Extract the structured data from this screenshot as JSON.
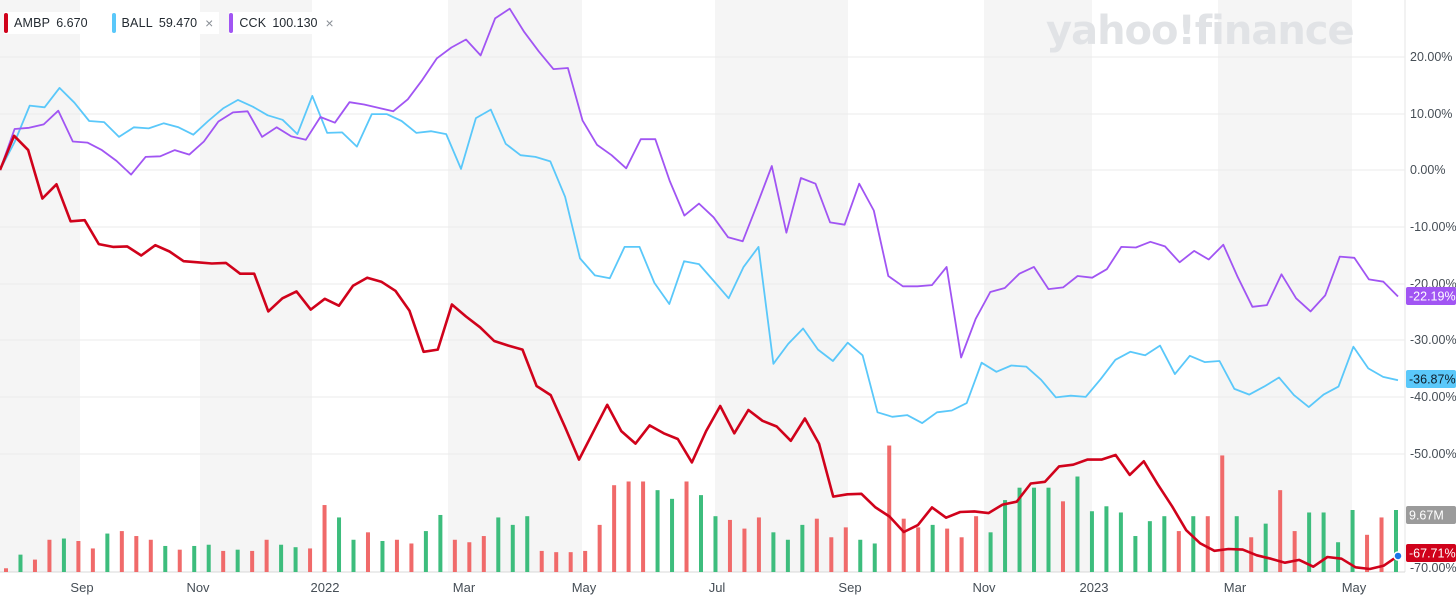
{
  "brand": {
    "logo_text": "yahoo!finance"
  },
  "legend": [
    {
      "symbol": "AMBP",
      "value": "6.670",
      "color": "#d0021b",
      "removable": false
    },
    {
      "symbol": "BALL",
      "value": "59.470",
      "color": "#5ac8fa",
      "removable": true
    },
    {
      "symbol": "CCK",
      "value": "100.130",
      "color": "#a155f3",
      "removable": true
    }
  ],
  "legend_close_glyph": "×",
  "chart_data": {
    "type": "line",
    "x_ticks": [
      "Sep",
      "Nov",
      "2022",
      "Mar",
      "May",
      "Jul",
      "Sep",
      "Nov",
      "2023",
      "Mar",
      "May"
    ],
    "y_ticks": [
      "20.00%",
      "10.00%",
      "0.00%",
      "-10.00%",
      "-20.00%",
      "-30.00%",
      "-40.00%",
      "-50.00%",
      "-70.00%"
    ],
    "ylim": [
      -70,
      30
    ],
    "series": [
      {
        "name": "AMBP",
        "color": "#d0021b",
        "last_label": "-67.71%",
        "values": [
          0,
          6,
          3.5,
          -5,
          -2.5,
          -9,
          -8.8,
          -13,
          -13.5,
          -13.4,
          -15,
          -13.2,
          -14.3,
          -16,
          -16.2,
          -16.4,
          -16.3,
          -18.2,
          -18.2,
          -24.8,
          -22.5,
          -21.3,
          -24.5,
          -22.6,
          -23.8,
          -20.3,
          -18.9,
          -19.6,
          -21.2,
          -24.7,
          -31.9,
          -31.5,
          -23.6,
          -25.7,
          -27.6,
          -30,
          -30.8,
          -31.5,
          -37.9,
          -39.5,
          -45,
          -50.8,
          -46,
          -41.2,
          -45.8,
          -48,
          -44.8,
          -46.2,
          -47.2,
          -51.3,
          -45.8,
          -41.4,
          -46.2,
          -42.1,
          -44,
          -45,
          -47.5,
          -43.6,
          -48,
          -57.3,
          -56.9,
          -56.8,
          -59.2,
          -60.8,
          -63.5,
          -62.3,
          -59.2,
          -61,
          -60,
          -59.9,
          -60.2,
          -58.7,
          -58.2,
          -55,
          -54.7,
          -52,
          -51.7,
          -50.8,
          -50.8,
          -50,
          -53.5,
          -51.1,
          -55.2,
          -59,
          -63.2,
          -65.5,
          -66.8,
          -66.5,
          -66.6,
          -67.6,
          -68.2,
          -68.9,
          -68.4,
          -69.6,
          -67.9,
          -68.2,
          -69.7,
          -70,
          -69.4,
          -67.71
        ]
      },
      {
        "name": "BALL",
        "color": "#5ac8fa",
        "last_label": "-36.87%",
        "values": [
          0,
          5,
          11.3,
          11,
          14.4,
          11.8,
          8.6,
          8.4,
          5.8,
          7.5,
          7.3,
          8.2,
          7.5,
          6.2,
          8.6,
          10.8,
          12.3,
          11.1,
          9.6,
          8.8,
          6.3,
          13,
          6.5,
          6.6,
          4.1,
          9.8,
          9.8,
          8.6,
          6.5,
          6.8,
          6.3,
          0.2,
          9.1,
          10.6,
          4.6,
          2.6,
          2.3,
          1.5,
          -4.7,
          -15.5,
          -18.5,
          -19,
          -13.5,
          -13.5,
          -19.8,
          -23.5,
          -16,
          -16.5,
          -19.5,
          -22.5,
          -17,
          -13.5,
          -34,
          -30.5,
          -27.8,
          -31.5,
          -33.5,
          -30.3,
          -32.5,
          -42.5,
          -43.3,
          -43,
          -44.4,
          -42.5,
          -42.2,
          -40.9,
          -33.8,
          -35.4,
          -34.3,
          -34.5,
          -36.8,
          -39.9,
          -39.6,
          -39.8,
          -36.7,
          -33.3,
          -31.9,
          -32.5,
          -30.8,
          -35.8,
          -32.6,
          -33.7,
          -33.5,
          -38.4,
          -39.4,
          -38,
          -36.4,
          -39.5,
          -41.6,
          -39.4,
          -38,
          -31,
          -34.8,
          -36.3,
          -36.87
        ]
      },
      {
        "name": "CCK",
        "color": "#a155f3",
        "last_label": "-22.19%",
        "values": [
          0,
          7.2,
          7.4,
          8,
          10.4,
          5,
          4.8,
          3.5,
          1.6,
          -0.8,
          2.3,
          2.4,
          3.5,
          2.7,
          5,
          8.5,
          10.1,
          10.3,
          5.8,
          7.5,
          5.9,
          5.3,
          9.3,
          8.3,
          11.9,
          11.5,
          10.9,
          10.3,
          12.4,
          15.8,
          19.6,
          21.5,
          22.9,
          20.1,
          26.6,
          28.3,
          24.2,
          20.8,
          17.7,
          17.9,
          8.7,
          4.4,
          2.6,
          0.3,
          5.4,
          5.4,
          -2,
          -8,
          -5.9,
          -8.3,
          -11.8,
          -12.5,
          -6,
          0.7,
          -11,
          -1.4,
          -2.4,
          -9.2,
          -9.6,
          -2.4,
          -7.1,
          -18.6,
          -20.4,
          -20.4,
          -20.2,
          -17,
          -32.9,
          -26.1,
          -21.4,
          -20.7,
          -18.2,
          -17,
          -20.9,
          -20.6,
          -18.6,
          -18.9,
          -17.4,
          -13.5,
          -13.6,
          -12.6,
          -13.4,
          -16.2,
          -14.2,
          -15.7,
          -13.1,
          -18.8,
          -24,
          -23.7,
          -18.3,
          -22.5,
          -24.8,
          -22,
          -15.2,
          -15.4,
          -19.2,
          -19.6,
          -22.19
        ]
      }
    ],
    "volume": {
      "label": "9.67M",
      "values": [
        {
          "v": 0.3,
          "up": false
        },
        {
          "v": 1.4,
          "up": true
        },
        {
          "v": 1.0,
          "up": false
        },
        {
          "v": 2.6,
          "up": false
        },
        {
          "v": 2.7,
          "up": true
        },
        {
          "v": 2.5,
          "up": false
        },
        {
          "v": 1.9,
          "up": false
        },
        {
          "v": 3.1,
          "up": true
        },
        {
          "v": 3.3,
          "up": false
        },
        {
          "v": 2.9,
          "up": false
        },
        {
          "v": 2.6,
          "up": false
        },
        {
          "v": 2.1,
          "up": true
        },
        {
          "v": 1.8,
          "up": false
        },
        {
          "v": 2.1,
          "up": true
        },
        {
          "v": 2.2,
          "up": true
        },
        {
          "v": 1.7,
          "up": false
        },
        {
          "v": 1.8,
          "up": true
        },
        {
          "v": 1.7,
          "up": false
        },
        {
          "v": 2.6,
          "up": false
        },
        {
          "v": 2.2,
          "up": true
        },
        {
          "v": 2.0,
          "up": true
        },
        {
          "v": 1.9,
          "up": false
        },
        {
          "v": 5.4,
          "up": false
        },
        {
          "v": 4.4,
          "up": true
        },
        {
          "v": 2.6,
          "up": true
        },
        {
          "v": 3.2,
          "up": false
        },
        {
          "v": 2.5,
          "up": true
        },
        {
          "v": 2.6,
          "up": false
        },
        {
          "v": 2.3,
          "up": false
        },
        {
          "v": 3.3,
          "up": true
        },
        {
          "v": 4.6,
          "up": true
        },
        {
          "v": 2.6,
          "up": false
        },
        {
          "v": 2.4,
          "up": false
        },
        {
          "v": 2.9,
          "up": false
        },
        {
          "v": 4.4,
          "up": true
        },
        {
          "v": 3.8,
          "up": true
        },
        {
          "v": 4.5,
          "up": true
        },
        {
          "v": 1.7,
          "up": false
        },
        {
          "v": 1.6,
          "up": false
        },
        {
          "v": 1.6,
          "up": false
        },
        {
          "v": 1.7,
          "up": false
        },
        {
          "v": 3.8,
          "up": false
        },
        {
          "v": 7.0,
          "up": false
        },
        {
          "v": 7.3,
          "up": false
        },
        {
          "v": 7.3,
          "up": false
        },
        {
          "v": 6.6,
          "up": true
        },
        {
          "v": 5.9,
          "up": true
        },
        {
          "v": 7.3,
          "up": false
        },
        {
          "v": 6.2,
          "up": true
        },
        {
          "v": 4.5,
          "up": true
        },
        {
          "v": 4.2,
          "up": false
        },
        {
          "v": 3.5,
          "up": false
        },
        {
          "v": 4.4,
          "up": false
        },
        {
          "v": 3.2,
          "up": true
        },
        {
          "v": 2.6,
          "up": true
        },
        {
          "v": 3.8,
          "up": true
        },
        {
          "v": 4.3,
          "up": false
        },
        {
          "v": 2.8,
          "up": false
        },
        {
          "v": 3.6,
          "up": false
        },
        {
          "v": 2.6,
          "up": true
        },
        {
          "v": 2.3,
          "up": true
        },
        {
          "v": 10.2,
          "up": false
        },
        {
          "v": 4.3,
          "up": false
        },
        {
          "v": 3.6,
          "up": false
        },
        {
          "v": 3.8,
          "up": true
        },
        {
          "v": 3.5,
          "up": false
        },
        {
          "v": 2.8,
          "up": false
        },
        {
          "v": 4.5,
          "up": false
        },
        {
          "v": 3.2,
          "up": true
        },
        {
          "v": 5.8,
          "up": true
        },
        {
          "v": 6.8,
          "up": true
        },
        {
          "v": 6.8,
          "up": true
        },
        {
          "v": 6.8,
          "up": true
        },
        {
          "v": 5.7,
          "up": false
        },
        {
          "v": 7.7,
          "up": true
        },
        {
          "v": 4.9,
          "up": true
        },
        {
          "v": 5.3,
          "up": true
        },
        {
          "v": 4.8,
          "up": true
        },
        {
          "v": 2.9,
          "up": true
        },
        {
          "v": 4.1,
          "up": true
        },
        {
          "v": 4.5,
          "up": true
        },
        {
          "v": 3.3,
          "up": false
        },
        {
          "v": 4.5,
          "up": true
        },
        {
          "v": 4.5,
          "up": false
        },
        {
          "v": 9.4,
          "up": false
        },
        {
          "v": 4.5,
          "up": true
        },
        {
          "v": 2.8,
          "up": false
        },
        {
          "v": 3.9,
          "up": true
        },
        {
          "v": 6.6,
          "up": false
        },
        {
          "v": 3.3,
          "up": false
        },
        {
          "v": 4.8,
          "up": true
        },
        {
          "v": 4.8,
          "up": true
        },
        {
          "v": 2.4,
          "up": true
        },
        {
          "v": 5.0,
          "up": true
        },
        {
          "v": 3.0,
          "up": false
        },
        {
          "v": 4.4,
          "up": false
        },
        {
          "v": 5.0,
          "up": true
        }
      ]
    }
  }
}
